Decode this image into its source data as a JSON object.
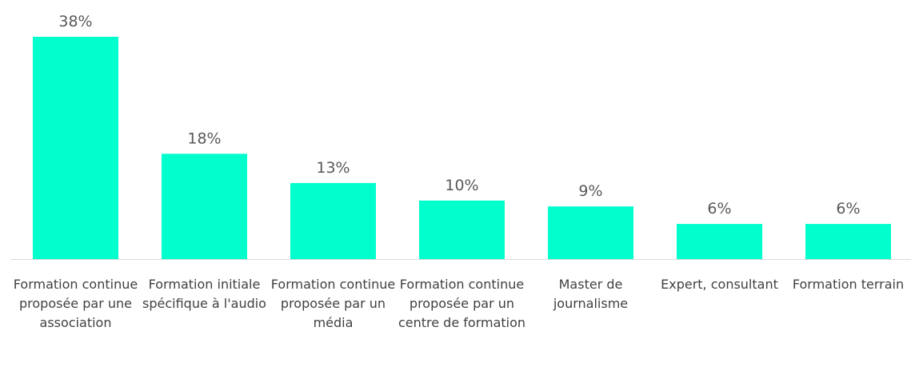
{
  "chart_data": {
    "type": "bar",
    "categories": [
      "Formation continue proposée par une association",
      "Formation initiale spécifique à l'audio",
      "Formation continue proposée par un média",
      "Formation continue proposée par un centre de formation",
      "Master de journalisme",
      "Expert, consultant",
      "Formation terrain"
    ],
    "values": [
      38,
      18,
      13,
      10,
      9,
      6,
      6
    ],
    "value_labels": [
      "38%",
      "18%",
      "13%",
      "10%",
      "9%",
      "6%",
      "6%"
    ],
    "color": "#00ffcc"
  }
}
